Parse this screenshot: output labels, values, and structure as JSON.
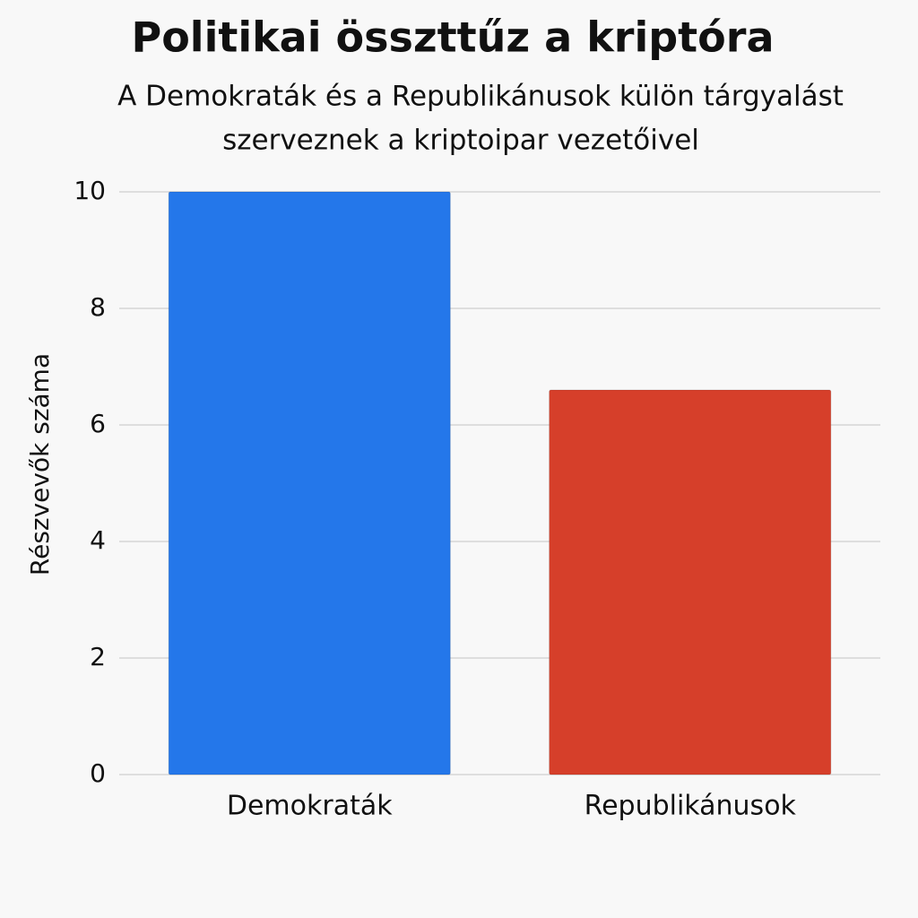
{
  "chart_data": {
    "type": "bar",
    "title": "Politikai összttűz a kriptóra",
    "subtitle": [
      "A Demokraták és a Republikánusok külön tárgyalást",
      "szerveznek a kriptoipar vezetőivel"
    ],
    "y_label": "Részvevők száma",
    "categories": [
      "Demokraták",
      "Republikánusok"
    ],
    "values": [
      10,
      6.6
    ],
    "colors": [
      "#2477ea",
      "#d63f2a"
    ],
    "ylim": [
      0,
      10
    ],
    "yticks": [
      0,
      2,
      4,
      6,
      8,
      10
    ],
    "grid": true
  }
}
